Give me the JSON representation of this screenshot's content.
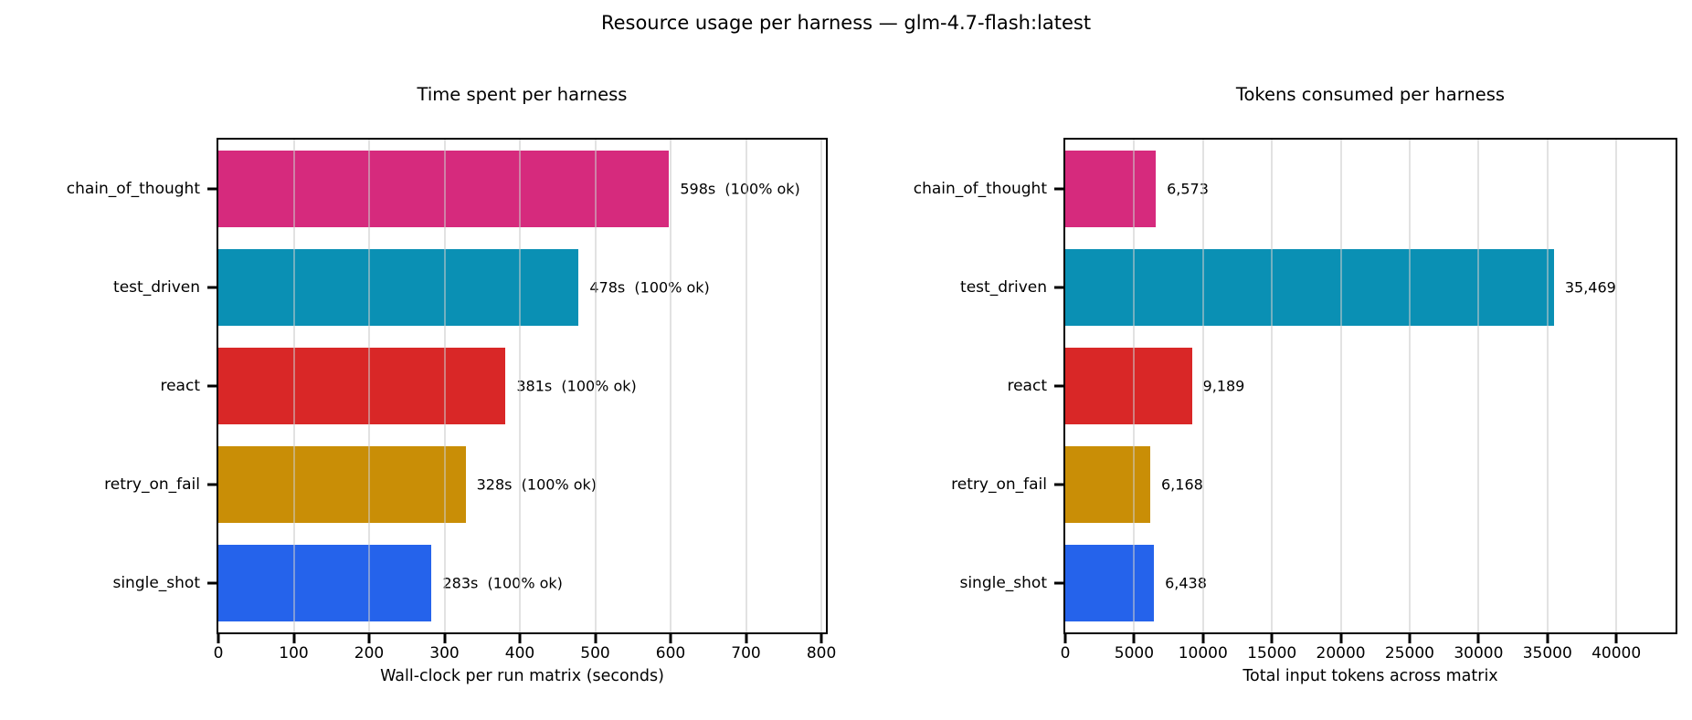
{
  "page": {
    "title": "Resource usage per harness — glm-4.7-flash:latest"
  },
  "chart_data": [
    {
      "type": "bar",
      "orientation": "horizontal",
      "title": "Time spent per harness",
      "xlabel": "Wall-clock per run matrix (seconds)",
      "categories": [
        "chain_of_thought",
        "test_driven",
        "react",
        "retry_on_fail",
        "single_shot"
      ],
      "values": [
        598,
        478,
        381,
        328,
        283
      ],
      "bar_labels": [
        "598s  (100% ok)",
        "478s  (100% ok)",
        "381s  (100% ok)",
        "328s  (100% ok)",
        "283s  (100% ok)"
      ],
      "bar_colors": [
        "#d62a7d",
        "#0a90b4",
        "#d92727",
        "#c98e06",
        "#2563eb"
      ],
      "xlim": [
        0,
        806
      ],
      "xticks": [
        0,
        100,
        200,
        300,
        400,
        500,
        600,
        700,
        800
      ],
      "xtick_labels": [
        "0",
        "100",
        "200",
        "300",
        "400",
        "500",
        "600",
        "700",
        "800"
      ],
      "grid": true,
      "legend": null
    },
    {
      "type": "bar",
      "orientation": "horizontal",
      "title": "Tokens consumed per harness",
      "xlabel": "Total input tokens across matrix",
      "categories": [
        "chain_of_thought",
        "test_driven",
        "react",
        "retry_on_fail",
        "single_shot"
      ],
      "values": [
        6573,
        35469,
        9189,
        6168,
        6438
      ],
      "bar_labels": [
        "6,573",
        "35,469",
        "9,189",
        "6,168",
        "6,438"
      ],
      "bar_colors": [
        "#d62a7d",
        "#0a90b4",
        "#d92727",
        "#c98e06",
        "#2563eb"
      ],
      "xlim": [
        0,
        44300
      ],
      "xticks": [
        0,
        5000,
        10000,
        15000,
        20000,
        25000,
        30000,
        35000,
        40000
      ],
      "xtick_labels": [
        "0",
        "5000",
        "10000",
        "15000",
        "20000",
        "25000",
        "30000",
        "35000",
        "40000"
      ],
      "grid": true,
      "legend": null
    }
  ]
}
